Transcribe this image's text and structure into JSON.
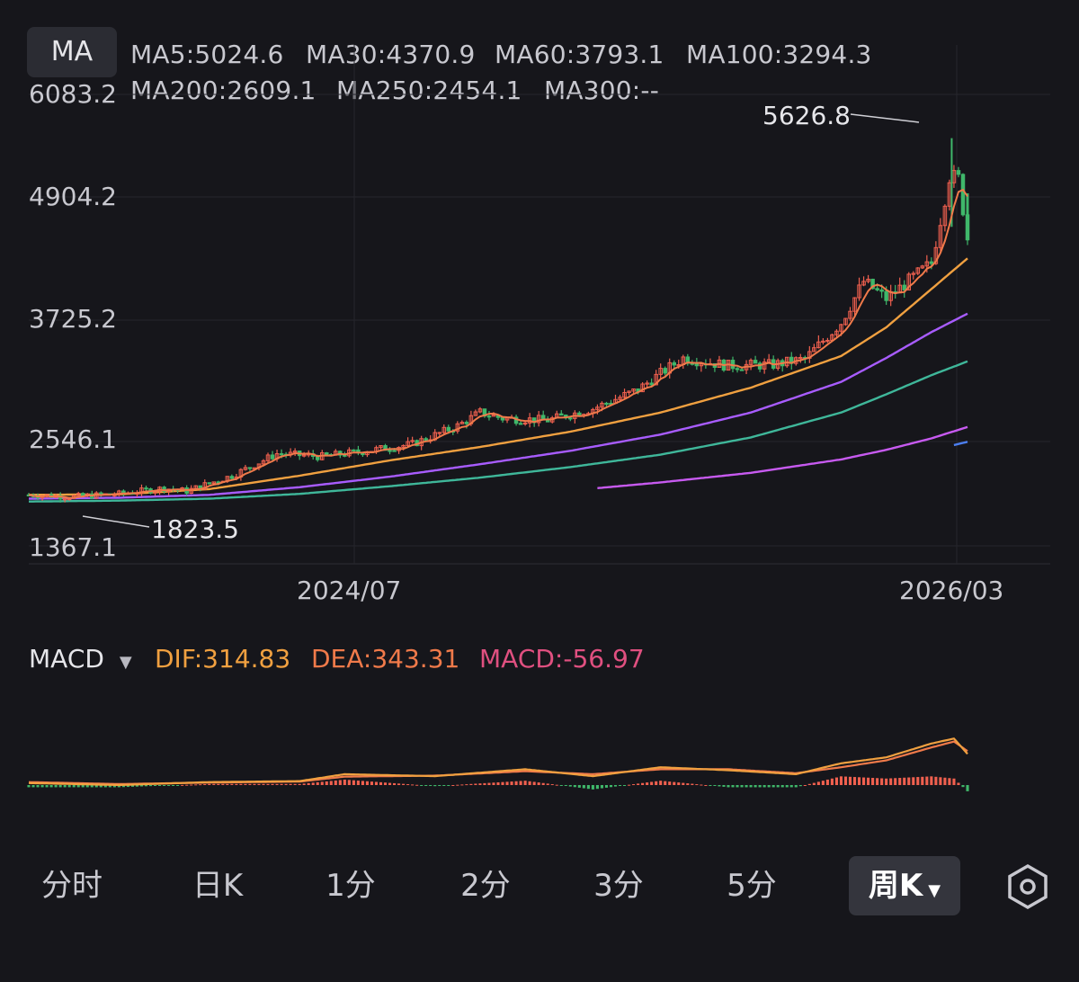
{
  "ma_button": "MA",
  "ma_legend": [
    {
      "text": "MA5:5024.6",
      "color": "#f07a4a"
    },
    {
      "text": "MA30:4370.9",
      "color": "#f0a040"
    },
    {
      "text": "MA60:3793.1",
      "color": "#a85cff"
    },
    {
      "text": "MA100:3294.3",
      "color": "#3fb79a"
    },
    {
      "text": "MA200:2609.1",
      "color": "#c75af0"
    },
    {
      "text": "MA250:2454.1",
      "color": "#4c7ff0"
    },
    {
      "text": "MA300:--",
      "color": "#ef5b8f"
    }
  ],
  "y_ticks": [
    "6083.2",
    "4904.2",
    "3725.2",
    "2546.1",
    "1367.1"
  ],
  "x_ticks": [
    "2024/07",
    "2026/03"
  ],
  "annotations": {
    "high": "5626.8",
    "low": "1823.5"
  },
  "macd": {
    "title": "MACD",
    "dif": "DIF:314.83",
    "dea": "DEA:343.31",
    "macd": "MACD:-56.97"
  },
  "tabs": [
    "分时",
    "日K",
    "1分",
    "2分",
    "3分",
    "5分",
    "周K"
  ],
  "active_tab": "周K",
  "colors": {
    "up": "#f0604f",
    "down": "#3fb76a",
    "bg": "#16161b",
    "dif": "#f0a040",
    "dea": "#f07a4a",
    "macd": "#e05080"
  },
  "chart_data": {
    "type": "candlestick",
    "ylim": [
      1367.1,
      6083.2
    ],
    "ma_lines": {
      "MA30": [
        [
          0,
          1900
        ],
        [
          20,
          1905
        ],
        [
          40,
          1960
        ],
        [
          60,
          2100
        ],
        [
          80,
          2260
        ],
        [
          100,
          2400
        ],
        [
          120,
          2560
        ],
        [
          140,
          2760
        ],
        [
          160,
          3020
        ],
        [
          180,
          3350
        ],
        [
          190,
          3650
        ],
        [
          200,
          4050
        ],
        [
          208,
          4370.9
        ]
      ],
      "MA60": [
        [
          0,
          1860
        ],
        [
          20,
          1870
        ],
        [
          40,
          1900
        ],
        [
          60,
          1980
        ],
        [
          80,
          2090
        ],
        [
          100,
          2220
        ],
        [
          120,
          2360
        ],
        [
          140,
          2530
        ],
        [
          160,
          2760
        ],
        [
          180,
          3080
        ],
        [
          190,
          3330
        ],
        [
          200,
          3600
        ],
        [
          208,
          3793.1
        ]
      ],
      "MA100": [
        [
          0,
          1830
        ],
        [
          20,
          1840
        ],
        [
          40,
          1860
        ],
        [
          60,
          1910
        ],
        [
          80,
          1990
        ],
        [
          100,
          2080
        ],
        [
          120,
          2190
        ],
        [
          140,
          2320
        ],
        [
          160,
          2500
        ],
        [
          180,
          2760
        ],
        [
          190,
          2950
        ],
        [
          200,
          3150
        ],
        [
          208,
          3294.3
        ]
      ],
      "MA200": [
        [
          126,
          1970
        ],
        [
          140,
          2030
        ],
        [
          160,
          2130
        ],
        [
          180,
          2270
        ],
        [
          190,
          2370
        ],
        [
          200,
          2490
        ],
        [
          208,
          2609.1
        ]
      ],
      "MA250": [
        [
          205,
          2420
        ],
        [
          208,
          2454.1
        ]
      ]
    },
    "price_path": [
      [
        0,
        1900
      ],
      [
        10,
        1880
      ],
      [
        20,
        1910
      ],
      [
        30,
        1970
      ],
      [
        35,
        1940
      ],
      [
        45,
        2100
      ],
      [
        55,
        2330
      ],
      [
        65,
        2300
      ],
      [
        75,
        2360
      ],
      [
        85,
        2430
      ],
      [
        95,
        2620
      ],
      [
        100,
        2760
      ],
      [
        105,
        2700
      ],
      [
        115,
        2680
      ],
      [
        125,
        2800
      ],
      [
        135,
        3000
      ],
      [
        140,
        3170
      ],
      [
        145,
        3330
      ],
      [
        155,
        3250
      ],
      [
        165,
        3260
      ],
      [
        172,
        3320
      ],
      [
        180,
        3700
      ],
      [
        185,
        4130
      ],
      [
        190,
        3950
      ],
      [
        200,
        4320
      ],
      [
        204,
        5230
      ],
      [
        206,
        5200
      ],
      [
        208,
        4580
      ]
    ],
    "high": 5626.8,
    "low": 1823.5,
    "macd_series": {
      "DIF": [
        [
          0,
          20
        ],
        [
          20,
          0
        ],
        [
          40,
          30
        ],
        [
          60,
          40
        ],
        [
          70,
          110
        ],
        [
          90,
          90
        ],
        [
          110,
          160
        ],
        [
          125,
          90
        ],
        [
          140,
          180
        ],
        [
          155,
          150
        ],
        [
          170,
          110
        ],
        [
          180,
          220
        ],
        [
          190,
          280
        ],
        [
          200,
          420
        ],
        [
          205,
          470
        ],
        [
          208,
          314.83
        ]
      ],
      "DEA": [
        [
          0,
          30
        ],
        [
          20,
          10
        ],
        [
          40,
          25
        ],
        [
          60,
          35
        ],
        [
          70,
          85
        ],
        [
          90,
          95
        ],
        [
          110,
          140
        ],
        [
          125,
          110
        ],
        [
          140,
          160
        ],
        [
          155,
          160
        ],
        [
          170,
          120
        ],
        [
          180,
          180
        ],
        [
          190,
          250
        ],
        [
          200,
          380
        ],
        [
          205,
          440
        ],
        [
          208,
          343.31
        ]
      ]
    }
  }
}
